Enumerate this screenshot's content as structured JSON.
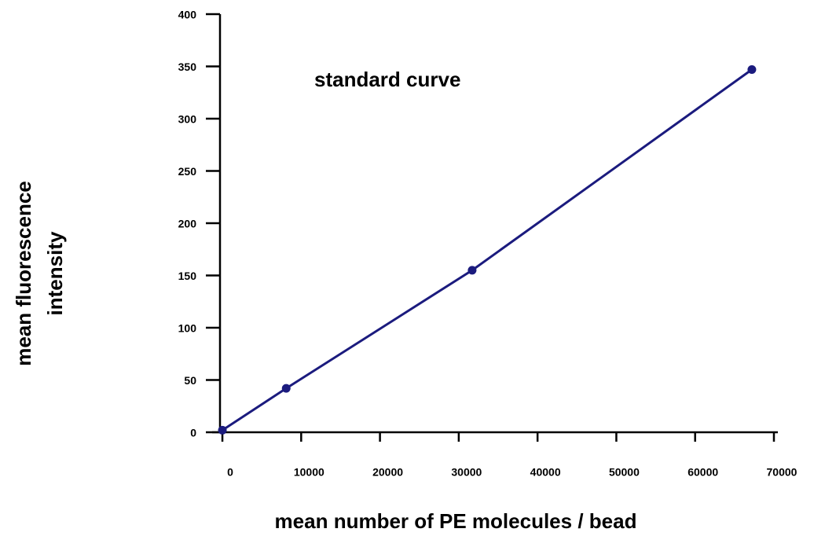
{
  "chart_data": {
    "type": "line",
    "title": "standard curve",
    "xlabel": "mean number of PE molecules / bead",
    "ylabel": [
      "mean fluorescence",
      "intensity"
    ],
    "series": [
      {
        "name": "standard curve",
        "color": "#1b1b7e",
        "x": [
          0,
          8100,
          31700,
          67200
        ],
        "values": [
          2,
          42,
          155,
          347
        ]
      }
    ],
    "xlim": [
      -1300,
      70500
    ],
    "xticks": [
      0,
      10000,
      20000,
      30000,
      40000,
      50000,
      60000,
      70000
    ],
    "ylim": [
      0,
      400
    ],
    "yticks": [
      0,
      50,
      100,
      150,
      200,
      250,
      300,
      350,
      400
    ]
  }
}
